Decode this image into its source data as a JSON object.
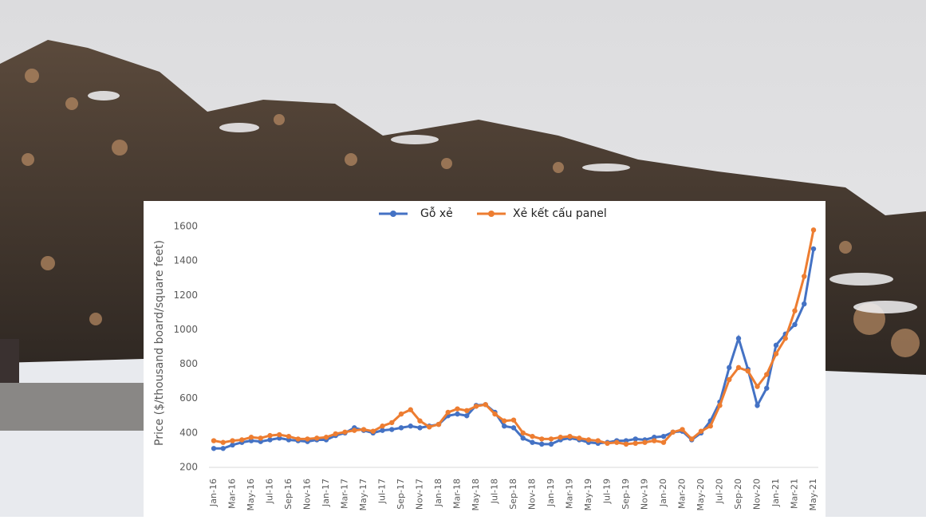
{
  "chart_data": {
    "type": "line",
    "legend": "top",
    "ylabel": "Price ($/thousand board/square feet)",
    "categories": [
      "Jan-16",
      null,
      "Mar-16",
      null,
      "May-16",
      null,
      "Jul-16",
      null,
      "Sep-16",
      null,
      "Nov-16",
      null,
      "Jan-17",
      null,
      "Mar-17",
      null,
      "May-17",
      null,
      "Jul-17",
      null,
      "Sep-17",
      null,
      "Nov-17",
      null,
      "Jan-18",
      null,
      "Mar-18",
      null,
      "May-18",
      null,
      "Jul-18",
      null,
      "Sep-18",
      null,
      "Nov-18",
      null,
      "Jan-19",
      null,
      "Mar-19",
      null,
      "May-19",
      null,
      "Jul-19",
      null,
      "Sep-19",
      null,
      "Nov-19",
      null,
      "Jan-20",
      null,
      "Mar-20",
      null,
      "May-20",
      null,
      "Jul-20",
      null,
      "Sep-20",
      null,
      "Nov-20",
      null,
      "Jan-21",
      null,
      "Mar-21",
      null,
      "May-21"
    ],
    "series": [
      {
        "name": "Gỗ xẻ",
        "color": "#4472c4",
        "values": [
          310,
          310,
          330,
          345,
          355,
          350,
          360,
          370,
          360,
          355,
          350,
          360,
          360,
          385,
          400,
          430,
          415,
          400,
          415,
          420,
          430,
          440,
          430,
          440,
          450,
          500,
          510,
          500,
          560,
          565,
          520,
          440,
          430,
          370,
          345,
          335,
          335,
          360,
          370,
          360,
          345,
          340,
          345,
          355,
          355,
          365,
          360,
          375,
          380,
          405,
          410,
          360,
          400,
          470,
          580,
          780,
          950,
          770,
          560,
          660,
          910,
          975,
          1030,
          1150,
          1470
        ]
      },
      {
        "name": "Xẻ kết cấu panel",
        "color": "#ed7d31",
        "values": [
          355,
          345,
          355,
          360,
          375,
          370,
          385,
          390,
          380,
          365,
          365,
          370,
          375,
          395,
          405,
          415,
          420,
          410,
          440,
          460,
          510,
          535,
          470,
          435,
          450,
          520,
          540,
          530,
          555,
          565,
          510,
          470,
          475,
          400,
          380,
          365,
          365,
          375,
          380,
          370,
          360,
          355,
          340,
          345,
          335,
          340,
          345,
          355,
          345,
          405,
          420,
          365,
          410,
          440,
          560,
          710,
          780,
          760,
          670,
          740,
          860,
          950,
          1110,
          1310,
          1580
        ]
      }
    ],
    "ylim": [
      200,
      1600
    ],
    "yticks": [
      200,
      400,
      600,
      800,
      1000,
      1200,
      1400,
      1600
    ],
    "grid": false
  }
}
